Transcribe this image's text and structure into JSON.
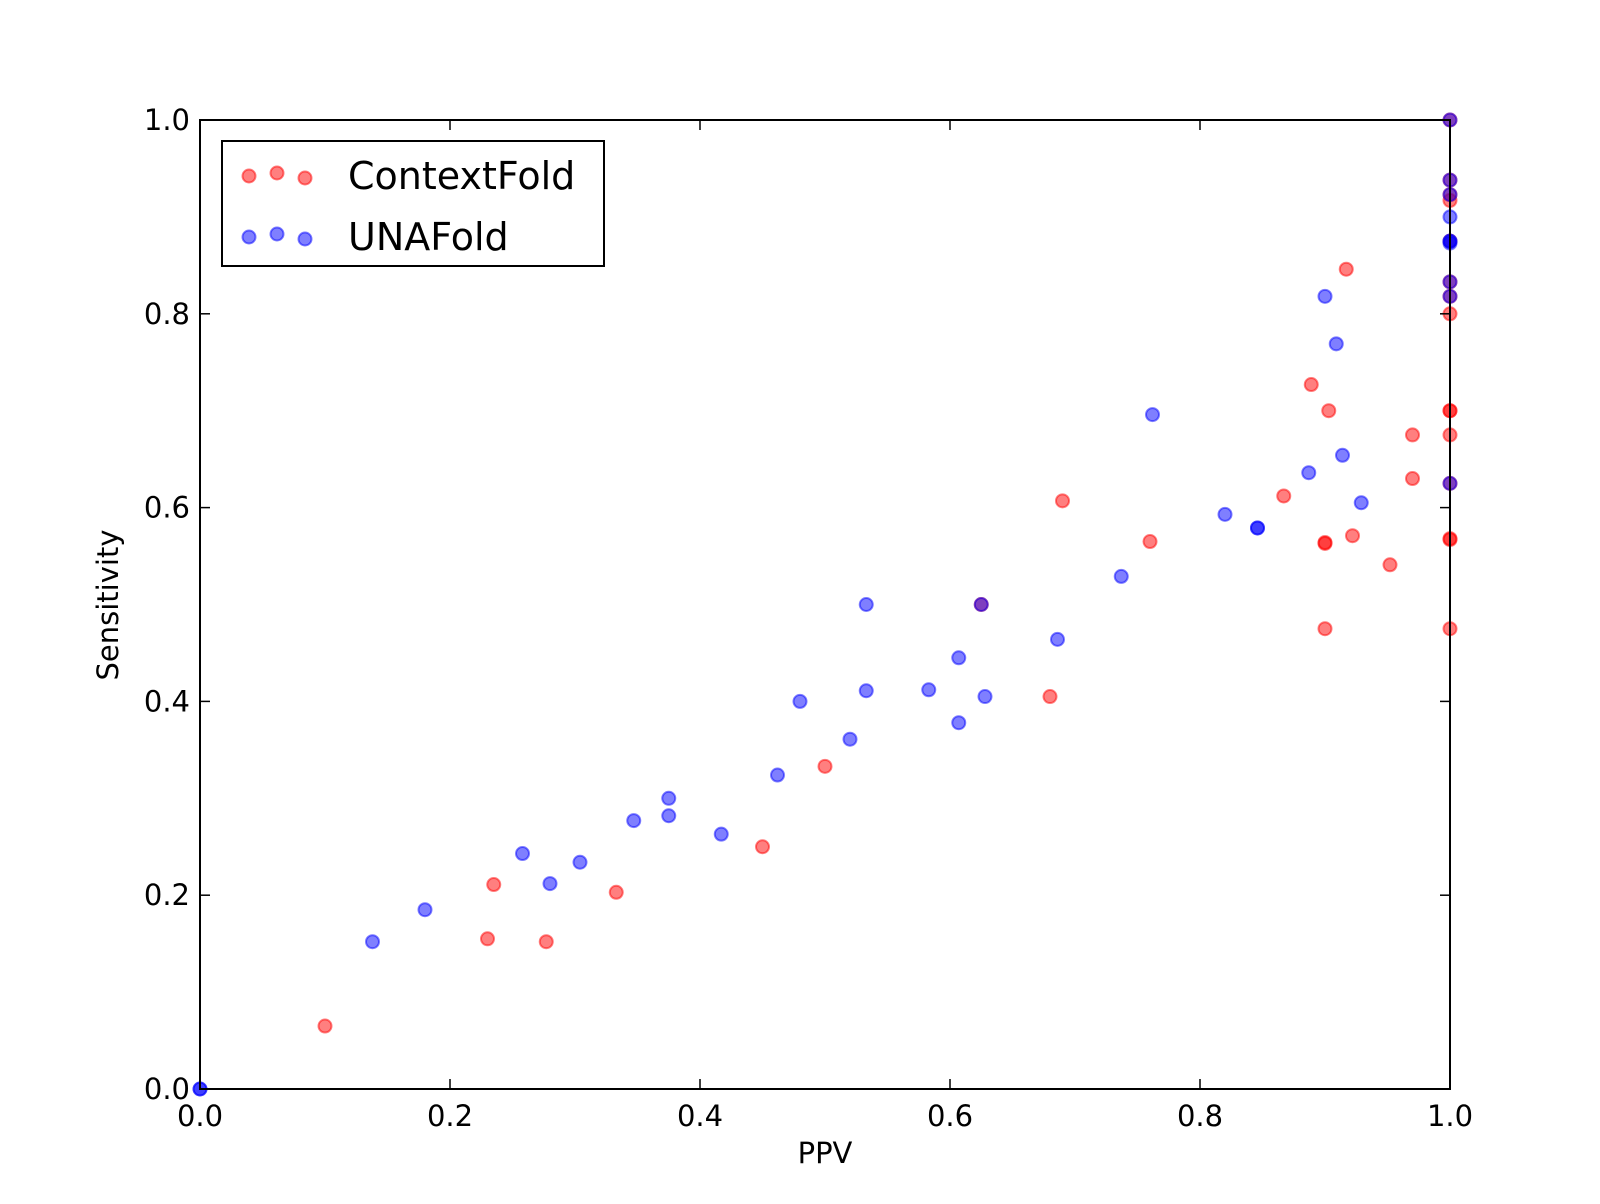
{
  "chart_data": {
    "type": "scatter",
    "xlabel": "PPV",
    "ylabel": "Sensitivity",
    "xlim": [
      0.0,
      1.0
    ],
    "ylim": [
      0.0,
      1.0
    ],
    "x_ticks": [
      "0.0",
      "0.2",
      "0.4",
      "0.6",
      "0.8",
      "1.0"
    ],
    "y_ticks": [
      "0.0",
      "0.2",
      "0.4",
      "0.6",
      "0.8",
      "1.0"
    ],
    "grid": false,
    "legend_position": "upper-left",
    "series": [
      {
        "name": "ContextFold",
        "color": "#ff0000",
        "points": [
          [
            0.1,
            0.065
          ],
          [
            0.23,
            0.155
          ],
          [
            0.235,
            0.211
          ],
          [
            0.277,
            0.152
          ],
          [
            0.333,
            0.203
          ],
          [
            0.45,
            0.25
          ],
          [
            0.5,
            0.333
          ],
          [
            0.68,
            0.405
          ],
          [
            0.69,
            0.607
          ],
          [
            0.625,
            0.5
          ],
          [
            0.76,
            0.565
          ],
          [
            0.867,
            0.612
          ],
          [
            0.889,
            0.727
          ],
          [
            0.9,
            0.564
          ],
          [
            0.9,
            0.475
          ],
          [
            0.9,
            0.563
          ],
          [
            0.903,
            0.7
          ],
          [
            0.917,
            0.846
          ],
          [
            0.922,
            0.571
          ],
          [
            0.952,
            0.541
          ],
          [
            0.97,
            0.675
          ],
          [
            0.97,
            0.63
          ],
          [
            1.0,
            0.475
          ],
          [
            1.0,
            0.567
          ],
          [
            1.0,
            0.568
          ],
          [
            1.0,
            0.625
          ],
          [
            1.0,
            0.675
          ],
          [
            1.0,
            0.7
          ],
          [
            1.0,
            0.7
          ],
          [
            1.0,
            0.8
          ],
          [
            1.0,
            0.818
          ],
          [
            1.0,
            0.833
          ],
          [
            1.0,
            0.875
          ],
          [
            1.0,
            0.917
          ],
          [
            1.0,
            0.923
          ],
          [
            1.0,
            0.938
          ],
          [
            1.0,
            1.0
          ]
        ]
      },
      {
        "name": "UNAFold",
        "color": "#0000ff",
        "points": [
          [
            0.0,
            0.0
          ],
          [
            0.0,
            0.0
          ],
          [
            0.138,
            0.152
          ],
          [
            0.18,
            0.185
          ],
          [
            0.258,
            0.243
          ],
          [
            0.28,
            0.212
          ],
          [
            0.304,
            0.234
          ],
          [
            0.347,
            0.277
          ],
          [
            0.375,
            0.3
          ],
          [
            0.375,
            0.282
          ],
          [
            0.417,
            0.263
          ],
          [
            0.462,
            0.324
          ],
          [
            0.48,
            0.4
          ],
          [
            0.52,
            0.361
          ],
          [
            0.533,
            0.5
          ],
          [
            0.533,
            0.411
          ],
          [
            0.583,
            0.412
          ],
          [
            0.607,
            0.445
          ],
          [
            0.607,
            0.378
          ],
          [
            0.625,
            0.5
          ],
          [
            0.628,
            0.405
          ],
          [
            0.686,
            0.464
          ],
          [
            0.737,
            0.529
          ],
          [
            0.762,
            0.696
          ],
          [
            0.82,
            0.593
          ],
          [
            0.846,
            0.579
          ],
          [
            0.846,
            0.579
          ],
          [
            0.887,
            0.636
          ],
          [
            0.9,
            0.818
          ],
          [
            0.909,
            0.769
          ],
          [
            0.914,
            0.654
          ],
          [
            0.929,
            0.605
          ],
          [
            1.0,
            0.625
          ],
          [
            1.0,
            0.818
          ],
          [
            1.0,
            0.833
          ],
          [
            1.0,
            0.873
          ],
          [
            1.0,
            0.875
          ],
          [
            1.0,
            0.875
          ],
          [
            1.0,
            0.9
          ],
          [
            1.0,
            0.923
          ],
          [
            1.0,
            0.938
          ],
          [
            1.0,
            1.0
          ]
        ]
      }
    ]
  }
}
